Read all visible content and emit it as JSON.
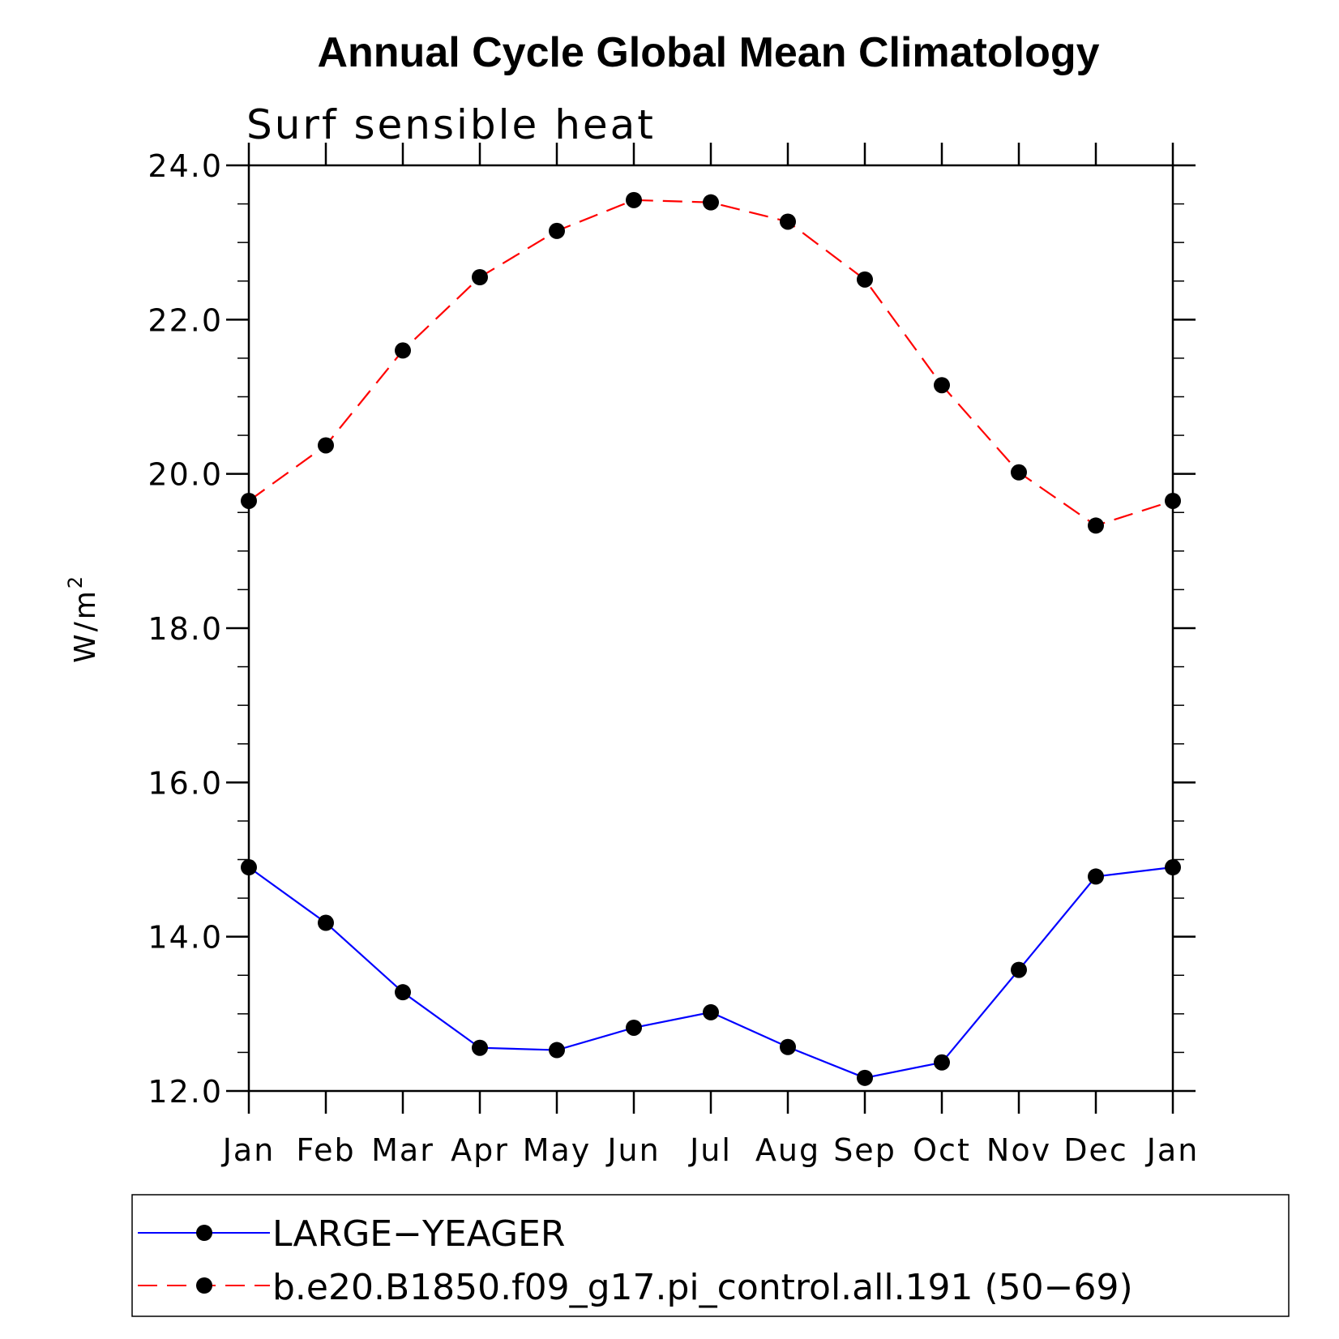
{
  "chart_data": {
    "type": "line",
    "title": "Annual Cycle Global Mean Climatology",
    "subtitle": "Surf sensible heat",
    "ylabel": "W/m",
    "ylabel_superscript": "2",
    "xlabel": "",
    "categories": [
      "Jan",
      "Feb",
      "Mar",
      "Apr",
      "May",
      "Jun",
      "Jul",
      "Aug",
      "Sep",
      "Oct",
      "Nov",
      "Dec",
      "Jan"
    ],
    "ylim": [
      12.0,
      24.0
    ],
    "yticks": [
      "12.0",
      "14.0",
      "16.0",
      "18.0",
      "20.0",
      "22.0",
      "24.0"
    ],
    "ytick_values": [
      12,
      14,
      16,
      18,
      20,
      22,
      24
    ],
    "y_minor_step": 0.5,
    "grid": false,
    "legend_position": "bottom",
    "series": [
      {
        "name": "LARGE−YEAGER",
        "color": "#0000ff",
        "line_style": "solid",
        "marker": "filled-circle",
        "values": [
          14.9,
          14.18,
          13.28,
          12.56,
          12.53,
          12.82,
          13.02,
          12.57,
          12.17,
          12.37,
          13.57,
          14.78,
          14.9
        ]
      },
      {
        "name": "b.e20.B1850.f09_g17.pi_control.all.191 (50−69)",
        "color": "#ff0000",
        "line_style": "dashed",
        "marker": "filled-circle",
        "values": [
          19.65,
          20.37,
          21.6,
          22.55,
          23.15,
          23.55,
          23.52,
          23.27,
          22.52,
          21.15,
          20.02,
          19.33,
          19.65
        ]
      }
    ]
  }
}
